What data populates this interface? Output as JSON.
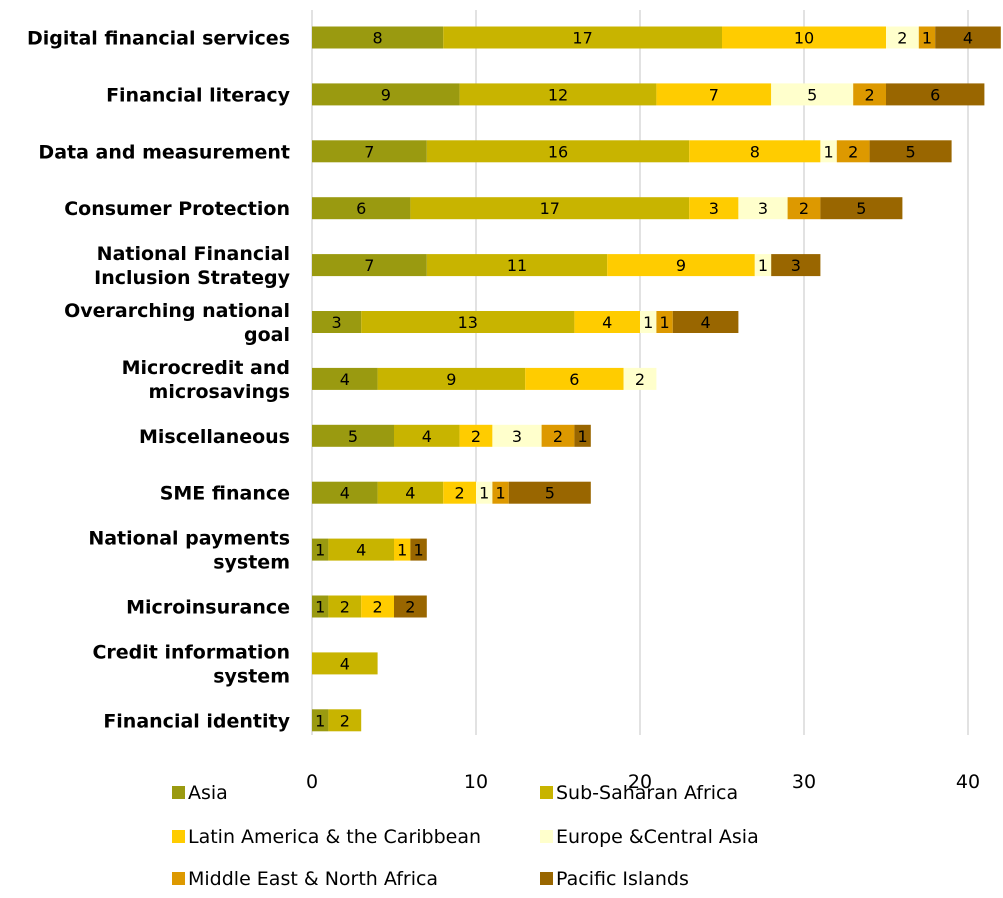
{
  "chart_data": {
    "type": "bar",
    "orientation": "horizontal",
    "stacked": true,
    "categories": [
      [
        "Digital financial services"
      ],
      [
        "Financial literacy"
      ],
      [
        "Data and measurement"
      ],
      [
        "Consumer Protection"
      ],
      [
        "National Financial",
        "Inclusion Strategy"
      ],
      [
        "Overarching national",
        "goal"
      ],
      [
        "Microcredit and",
        "microsavings"
      ],
      [
        "Miscellaneous"
      ],
      [
        "SME finance"
      ],
      [
        "National payments",
        "system"
      ],
      [
        "Microinsurance"
      ],
      [
        "Credit information",
        "system"
      ],
      [
        "Financial identity"
      ]
    ],
    "series": [
      {
        "name": "Asia",
        "color": "#9a9a10",
        "values": [
          8,
          9,
          7,
          6,
          7,
          3,
          4,
          5,
          4,
          1,
          1,
          0,
          1
        ]
      },
      {
        "name": "Sub-Saharan Africa",
        "color": "#c8b400",
        "values": [
          17,
          12,
          16,
          17,
          11,
          13,
          9,
          4,
          4,
          4,
          2,
          4,
          2
        ]
      },
      {
        "name": "Latin America & the Caribbean",
        "color": "#ffcc00",
        "values": [
          10,
          7,
          8,
          3,
          9,
          4,
          6,
          2,
          2,
          1,
          2,
          0,
          0
        ]
      },
      {
        "name": "Europe &Central Asia",
        "color": "#ffffcc",
        "values": [
          2,
          5,
          1,
          3,
          1,
          1,
          2,
          3,
          1,
          0,
          0,
          0,
          0
        ]
      },
      {
        "name": "Middle East & North Africa",
        "color": "#dd9900",
        "values": [
          1,
          2,
          2,
          2,
          0,
          1,
          0,
          2,
          1,
          0,
          0,
          0,
          0
        ]
      },
      {
        "name": "Pacific Islands",
        "color": "#996600",
        "values": [
          4,
          6,
          5,
          5,
          3,
          4,
          0,
          1,
          5,
          1,
          2,
          0,
          0
        ]
      }
    ],
    "xlim": [
      0,
      42
    ],
    "xticks": [
      0,
      10,
      20,
      30,
      40
    ],
    "grid": true,
    "legend_position": "bottom"
  }
}
